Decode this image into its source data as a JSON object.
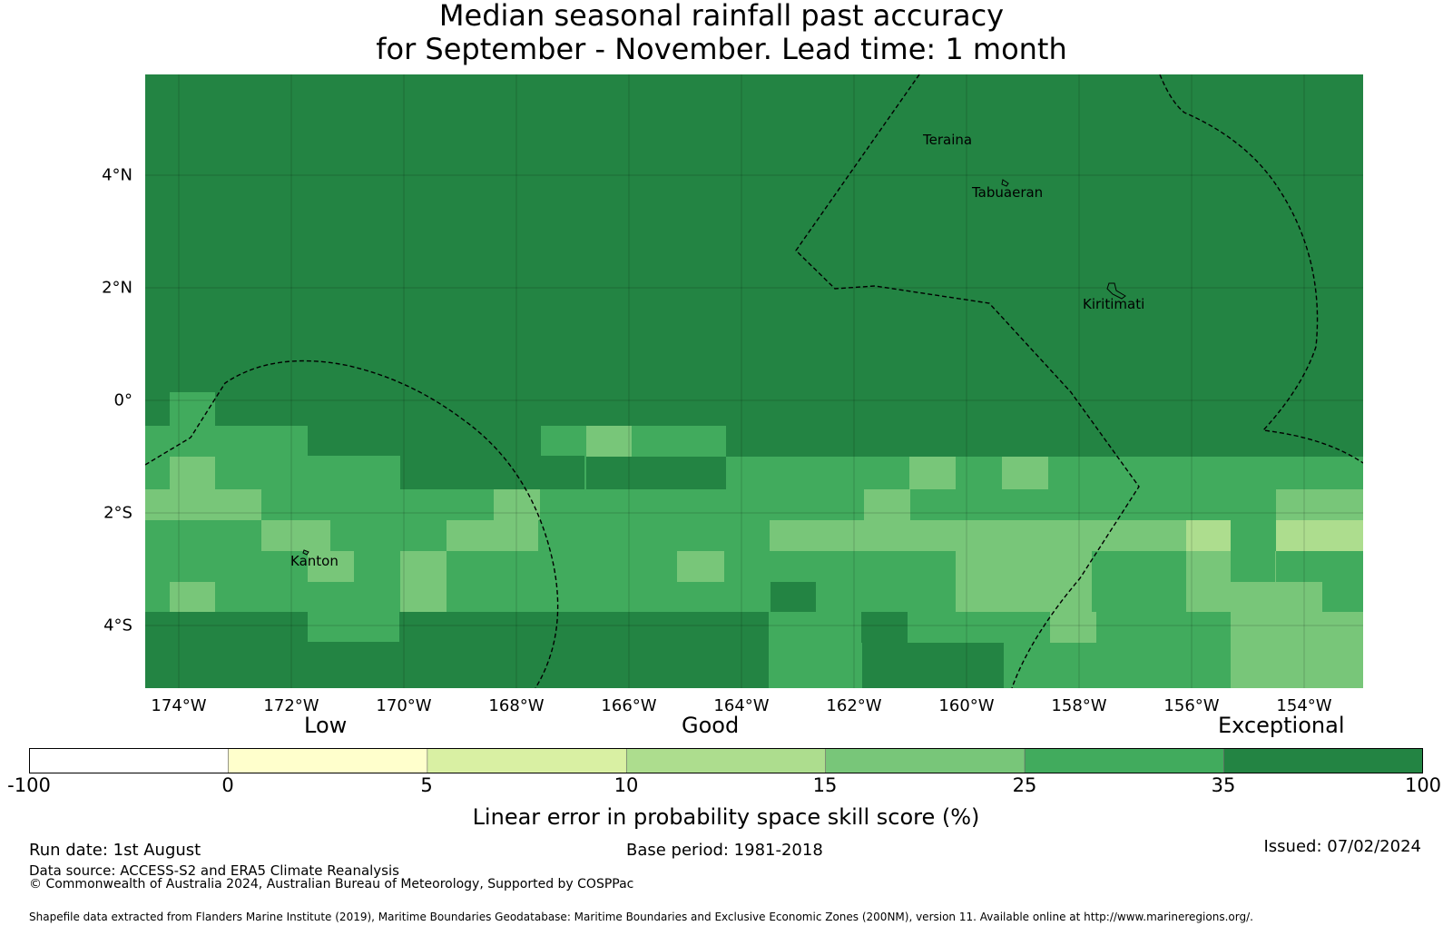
{
  "title": {
    "line1": "Median seasonal rainfall past accuracy",
    "line2": "for September - November. Lead time: 1 month"
  },
  "map": {
    "lat_labels": [
      "4°N",
      "2°N",
      "0°",
      "2°S",
      "4°S"
    ],
    "lon_labels": [
      "174°W",
      "172°W",
      "170°W",
      "168°W",
      "166°W",
      "164°W",
      "162°W",
      "160°W",
      "158°W",
      "156°W",
      "154°W"
    ],
    "places": {
      "teraina": "Teraina",
      "tabuaeran": "Tabuaeran",
      "kiritimati": "Kiritimati",
      "kanton": "Kanton"
    }
  },
  "legend": {
    "categories": {
      "low": "Low",
      "good": "Good",
      "exceptional": "Exceptional"
    },
    "bins": [
      {
        "from": "-100",
        "to": "0",
        "color": "#ffffff"
      },
      {
        "from": "0",
        "to": "5",
        "color": "#ffffcc"
      },
      {
        "from": "5",
        "to": "10",
        "color": "#d9f0a3"
      },
      {
        "from": "10",
        "to": "15",
        "color": "#addd8e"
      },
      {
        "from": "15",
        "to": "25",
        "color": "#78c679"
      },
      {
        "from": "25",
        "to": "35",
        "color": "#41ab5d"
      },
      {
        "from": "35",
        "to": "100",
        "color": "#238443"
      }
    ],
    "tick_labels": [
      "-100",
      "0",
      "5",
      "10",
      "15",
      "25",
      "35",
      "100"
    ],
    "axis_label": "Linear error in probability space skill score (%)"
  },
  "footer": {
    "run_date": "Run date: 1st August",
    "base_period": "Base period: 1981-2018",
    "issued": "Issued: 07/02/2024",
    "data_source": "Data source: ACCESS-S2 and ERA5 Climate Reanalysis",
    "copyright": "© Commonwealth of Australia 2024, Australian Bureau of Meteorology, Supported by COSPPac",
    "shapefile": "Shapefile data extracted from Flanders Marine Institute (2019), Maritime Boundaries Geodatabase: Maritime Boundaries and Exclusive Economic Zones (200NM), version 11. Available online at http://www.marineregions.org/."
  }
}
